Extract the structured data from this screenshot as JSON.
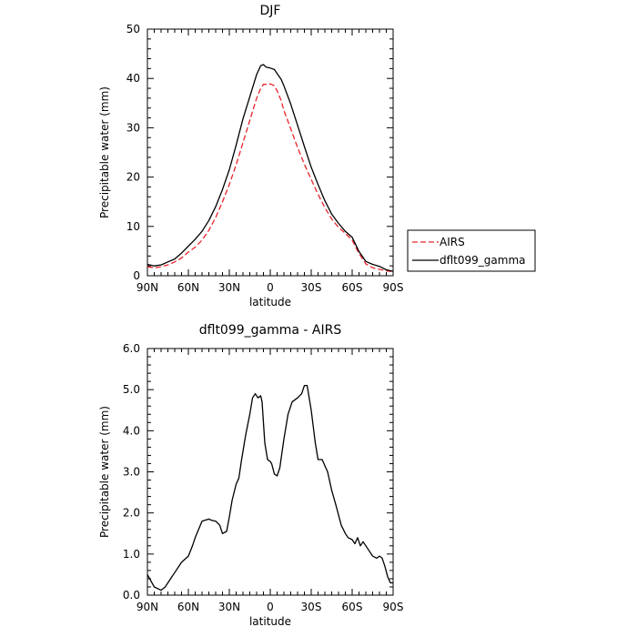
{
  "chart_data": [
    {
      "type": "line",
      "title": "DJF",
      "xlabel": "latitude",
      "ylabel": "Precipitable water (mm)",
      "xlim": [
        90,
        -90
      ],
      "ylim": [
        0,
        50
      ],
      "x_ticks": [
        {
          "value": 90,
          "label": "90N"
        },
        {
          "value": 60,
          "label": "60N"
        },
        {
          "value": 30,
          "label": "30N"
        },
        {
          "value": 0,
          "label": "0"
        },
        {
          "value": -30,
          "label": "30S"
        },
        {
          "value": -60,
          "label": "60S"
        },
        {
          "value": -90,
          "label": "90S"
        }
      ],
      "y_ticks": [
        {
          "value": 0,
          "label": "0"
        },
        {
          "value": 10,
          "label": "10"
        },
        {
          "value": 20,
          "label": "20"
        },
        {
          "value": 30,
          "label": "30"
        },
        {
          "value": 40,
          "label": "40"
        },
        {
          "value": 50,
          "label": "50"
        }
      ],
      "legend_position": "right",
      "series": [
        {
          "name": "AIRS",
          "color": "#e8242b",
          "style": "dashed",
          "x": [
            90,
            85,
            80,
            75,
            70,
            65,
            60,
            55,
            50,
            45,
            40,
            35,
            30,
            25,
            20,
            15,
            10,
            7,
            5,
            3,
            0,
            -3,
            -5,
            -8,
            -10,
            -15,
            -20,
            -25,
            -30,
            -35,
            -40,
            -45,
            -50,
            -55,
            -60,
            -65,
            -70,
            -75,
            -80,
            -85,
            -90
          ],
          "y": [
            1.8,
            1.6,
            1.8,
            2.2,
            2.8,
            3.6,
            4.8,
            5.8,
            7.2,
            9.2,
            11.8,
            15.0,
            18.5,
            22.5,
            27.0,
            31.5,
            36.0,
            38.0,
            38.8,
            38.8,
            38.9,
            38.5,
            37.5,
            35.5,
            33.5,
            29.8,
            26.0,
            22.6,
            19.5,
            16.5,
            13.8,
            11.5,
            9.8,
            8.6,
            7.2,
            4.5,
            2.4,
            1.6,
            1.3,
            1.0,
            0.8
          ]
        },
        {
          "name": "dflt099_gamma",
          "color": "#000000",
          "style": "solid",
          "x": [
            90,
            85,
            80,
            75,
            70,
            65,
            60,
            55,
            50,
            45,
            40,
            35,
            30,
            25,
            20,
            15,
            10,
            7,
            5,
            3,
            0,
            -3,
            -5,
            -8,
            -10,
            -15,
            -20,
            -25,
            -30,
            -35,
            -40,
            -45,
            -50,
            -55,
            -60,
            -65,
            -70,
            -75,
            -80,
            -85,
            -90
          ],
          "y": [
            2.3,
            2.0,
            2.2,
            2.8,
            3.4,
            4.6,
            6.0,
            7.4,
            9.0,
            11.2,
            14.0,
            17.5,
            21.5,
            26.5,
            31.8,
            36.3,
            40.8,
            42.6,
            42.8,
            42.3,
            42.1,
            41.8,
            41.0,
            39.8,
            38.5,
            34.8,
            30.5,
            26.2,
            22.0,
            18.5,
            15.2,
            12.5,
            10.6,
            9.0,
            7.8,
            4.9,
            2.9,
            2.3,
            1.9,
            1.2,
            0.9
          ]
        }
      ]
    },
    {
      "type": "line",
      "title": "dflt099_gamma - AIRS",
      "xlabel": "latitude",
      "ylabel": "Precipitable water (mm)",
      "xlim": [
        90,
        -90
      ],
      "ylim": [
        0,
        6
      ],
      "x_ticks": [
        {
          "value": 90,
          "label": "90N"
        },
        {
          "value": 60,
          "label": "60N"
        },
        {
          "value": 30,
          "label": "30N"
        },
        {
          "value": 0,
          "label": "0"
        },
        {
          "value": -30,
          "label": "30S"
        },
        {
          "value": -60,
          "label": "60S"
        },
        {
          "value": -90,
          "label": "90S"
        }
      ],
      "y_ticks": [
        {
          "value": 0,
          "label": "0.0"
        },
        {
          "value": 1,
          "label": "1.0"
        },
        {
          "value": 2,
          "label": "2.0"
        },
        {
          "value": 3,
          "label": "3.0"
        },
        {
          "value": 4,
          "label": "4.0"
        },
        {
          "value": 5,
          "label": "5.0"
        },
        {
          "value": 6,
          "label": "6.0"
        }
      ],
      "series": [
        {
          "color": "#000000",
          "style": "solid",
          "x": [
            90,
            85,
            80,
            77,
            75,
            73,
            70,
            65,
            60,
            57,
            55,
            50,
            45,
            43,
            40,
            37,
            35,
            32,
            30,
            28,
            25,
            23,
            21,
            18,
            15,
            13,
            11,
            9,
            7,
            6,
            4,
            2,
            0,
            -1,
            -3,
            -5,
            -7,
            -10,
            -13,
            -16,
            -20,
            -23,
            -25,
            -27,
            -30,
            -33,
            -35,
            -38,
            -42,
            -45,
            -48,
            -52,
            -55,
            -57,
            -60,
            -62,
            -64,
            -66,
            -68,
            -70,
            -72,
            -75,
            -78,
            -80,
            -82,
            -84,
            -86,
            -88,
            -90
          ],
          "y": [
            0.5,
            0.2,
            0.12,
            0.2,
            0.3,
            0.4,
            0.55,
            0.8,
            0.95,
            1.2,
            1.4,
            1.8,
            1.85,
            1.82,
            1.8,
            1.7,
            1.5,
            1.55,
            1.9,
            2.3,
            2.7,
            2.85,
            3.3,
            3.9,
            4.4,
            4.8,
            4.9,
            4.8,
            4.85,
            4.7,
            3.7,
            3.3,
            3.25,
            3.2,
            2.95,
            2.9,
            3.1,
            3.8,
            4.4,
            4.7,
            4.8,
            4.9,
            5.1,
            5.1,
            4.5,
            3.7,
            3.3,
            3.3,
            3.0,
            2.55,
            2.2,
            1.7,
            1.5,
            1.4,
            1.35,
            1.25,
            1.4,
            1.2,
            1.3,
            1.2,
            1.1,
            0.95,
            0.9,
            0.95,
            0.9,
            0.7,
            0.45,
            0.3,
            0.3
          ]
        }
      ]
    }
  ]
}
